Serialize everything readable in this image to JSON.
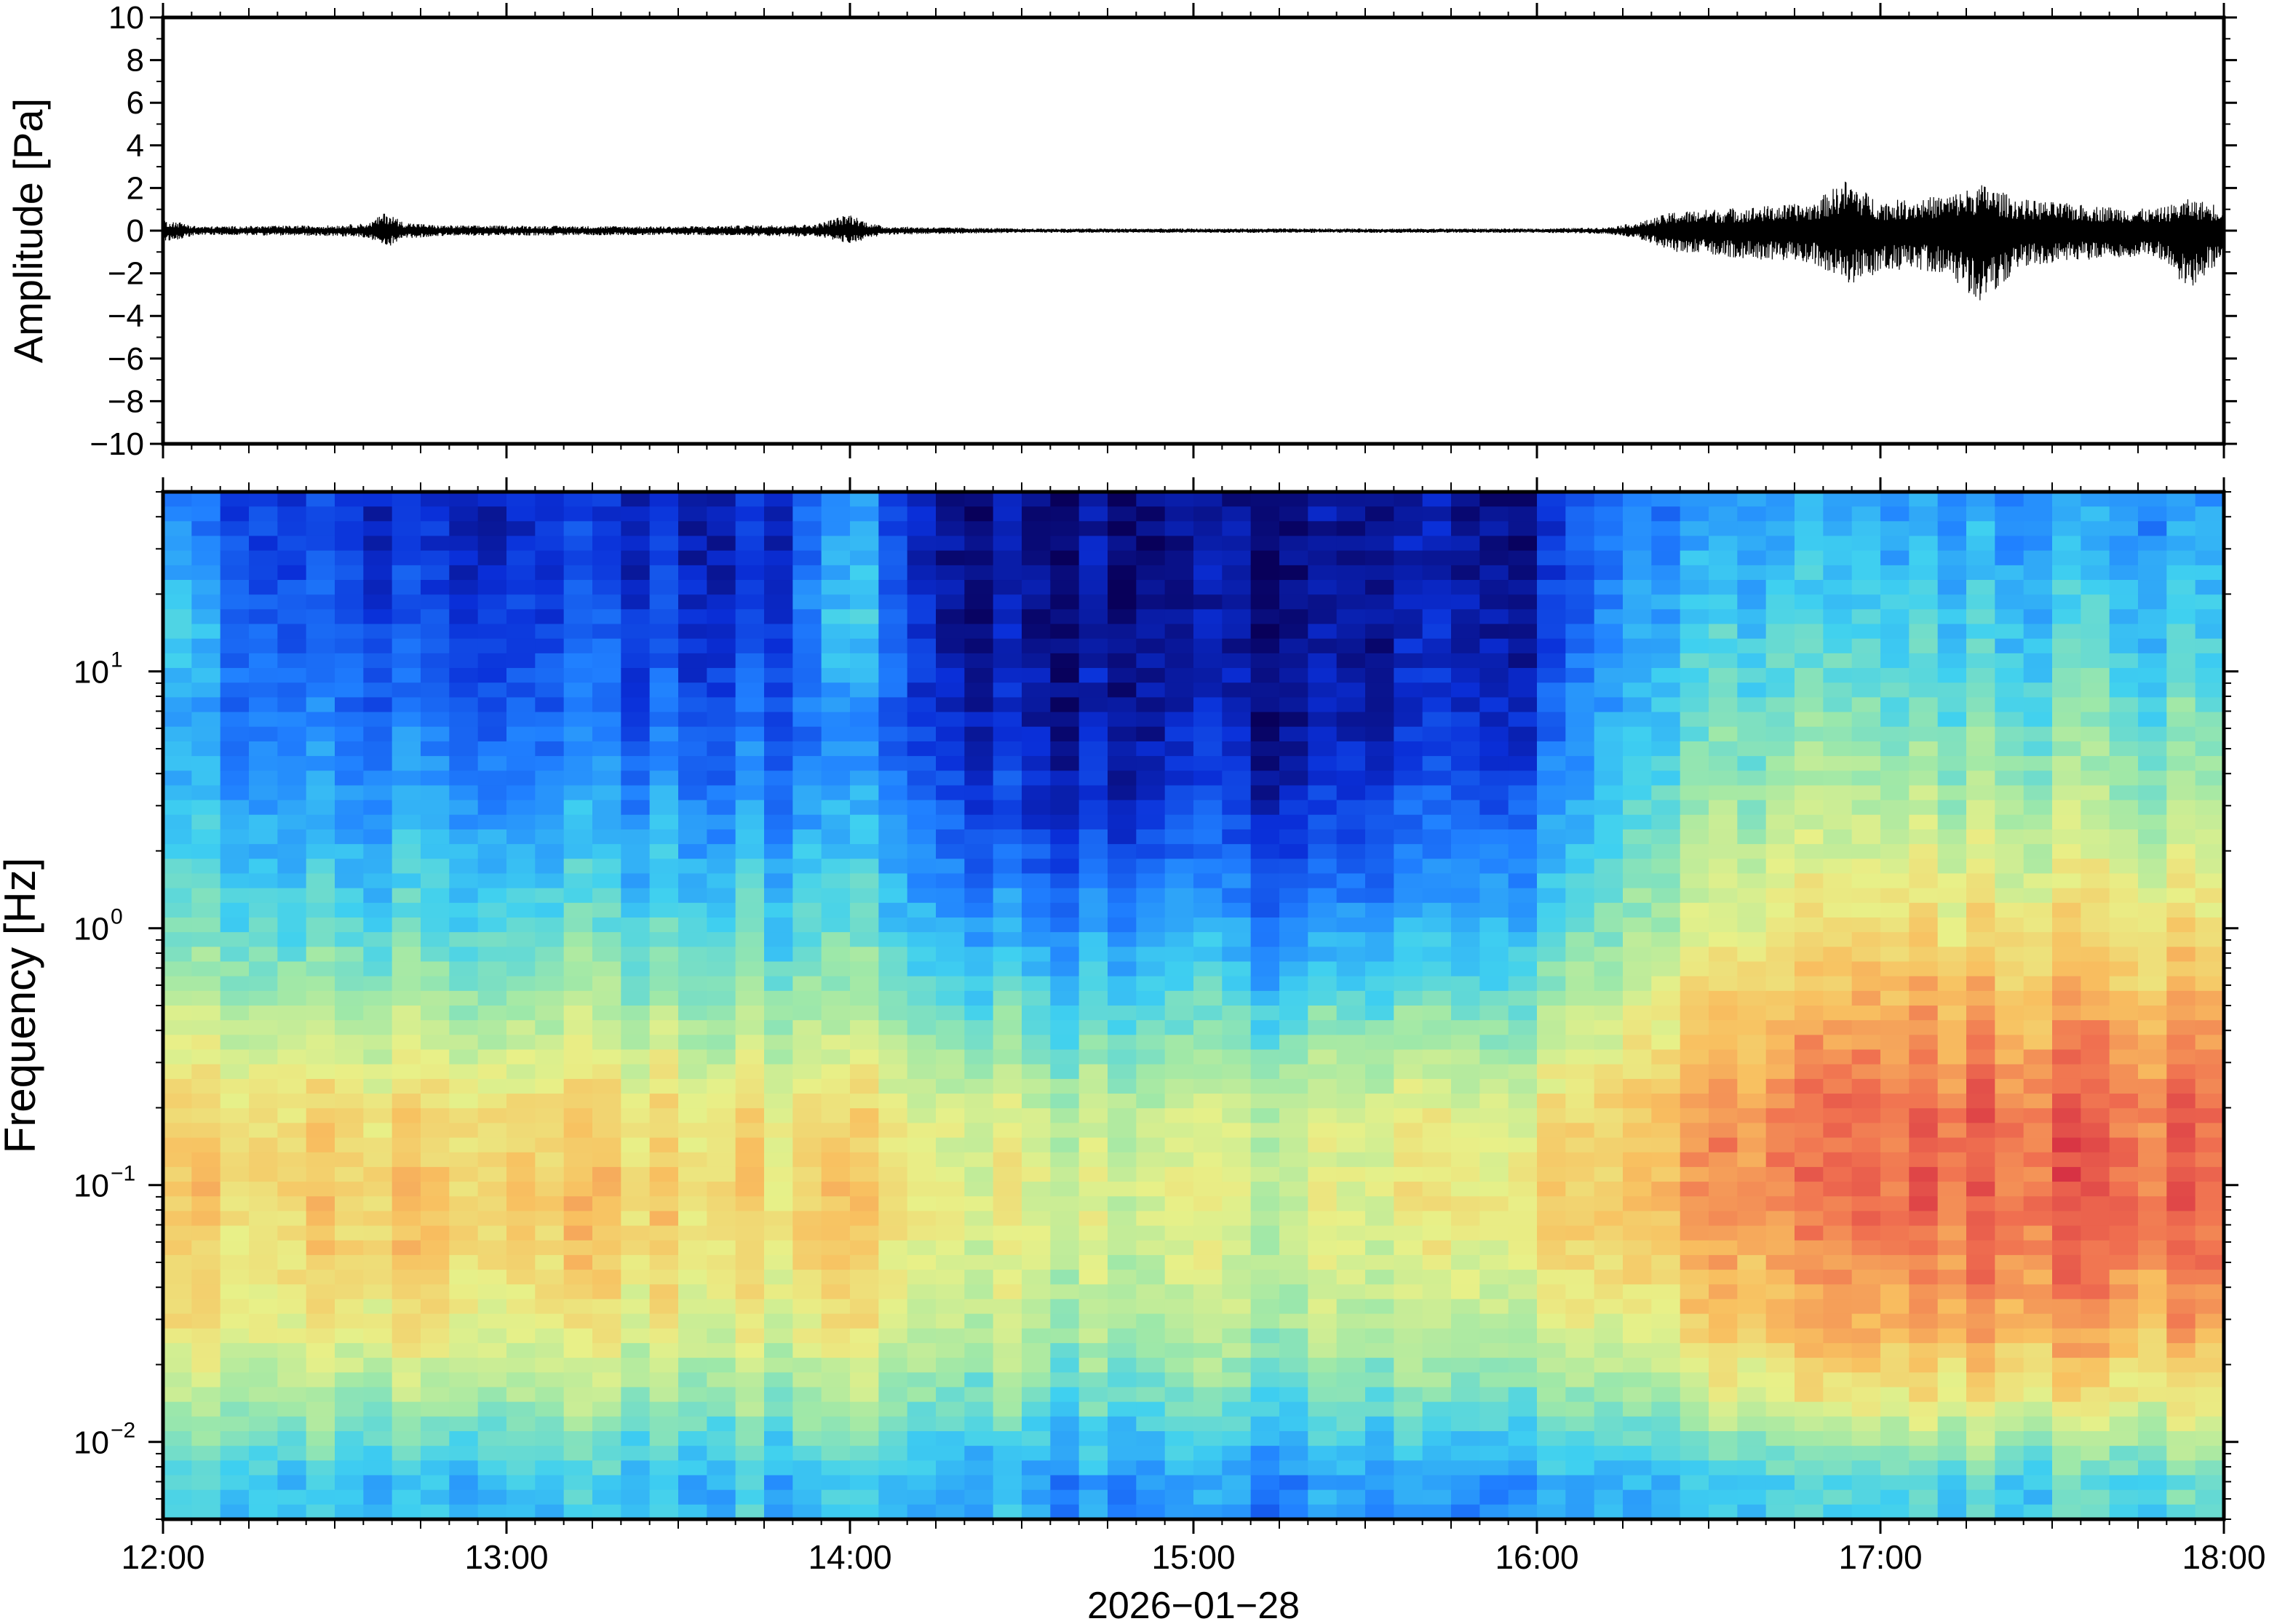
{
  "chart_data": [
    {
      "type": "line",
      "panel": "waveform",
      "ylabel": "Amplitude [Pa]",
      "ylim": [
        -10,
        10
      ],
      "yticks": [
        10,
        8,
        6,
        4,
        2,
        0,
        -2,
        -4,
        -6,
        -8,
        -10
      ],
      "ytick_labels": [
        "10",
        "8",
        "6",
        "4",
        "2",
        "0",
        "−2",
        "−4",
        "−6",
        "−8",
        "−10"
      ],
      "xlim": [
        "12:00",
        "18:00"
      ],
      "envelope": {
        "x_hours": [
          12.0,
          12.05,
          12.1,
          12.5,
          12.6,
          12.65,
          12.7,
          12.8,
          13.5,
          13.9,
          14.0,
          14.05,
          14.1,
          14.5,
          15.0,
          15.5,
          16.0,
          16.2,
          16.3,
          16.4,
          16.6,
          16.8,
          16.9,
          17.0,
          17.1,
          17.2,
          17.3,
          17.4,
          17.6,
          17.8,
          17.9,
          18.0
        ],
        "y_max": [
          0.5,
          0.4,
          0.2,
          0.25,
          0.35,
          0.9,
          0.4,
          0.25,
          0.2,
          0.3,
          0.8,
          0.4,
          0.2,
          0.1,
          0.1,
          0.1,
          0.1,
          0.15,
          0.4,
          0.9,
          1.1,
          1.3,
          2.4,
          1.4,
          1.5,
          1.7,
          2.2,
          1.5,
          1.2,
          1.0,
          1.5,
          1.2
        ],
        "y_min": [
          -0.5,
          -0.4,
          -0.2,
          -0.25,
          -0.35,
          -0.8,
          -0.4,
          -0.25,
          -0.2,
          -0.3,
          -0.6,
          -0.4,
          -0.2,
          -0.1,
          -0.1,
          -0.1,
          -0.1,
          -0.15,
          -0.4,
          -1.0,
          -1.3,
          -1.5,
          -2.6,
          -2.0,
          -1.8,
          -2.1,
          -3.6,
          -1.8,
          -1.4,
          -1.2,
          -2.8,
          -1.3
        ]
      }
    },
    {
      "type": "heatmap",
      "panel": "spectrogram",
      "ylabel": "Frequency [Hz]",
      "yscale": "log",
      "ylim": [
        0.005,
        50
      ],
      "ytick_labels": [
        "10",
        "10",
        "10",
        "10"
      ],
      "ytick_exponents": [
        "1",
        "0",
        "−1",
        "−2"
      ],
      "ytick_values": [
        10,
        1,
        0.1,
        0.01
      ],
      "colormap": [
        "#08005a",
        "#0a2fd8",
        "#2080ff",
        "#3fd0f0",
        "#9fe8a8",
        "#e8f088",
        "#f8c060",
        "#f07050",
        "#d02040"
      ],
      "xlabel": "2026−01−28",
      "xlim": [
        "12:00",
        "18:00"
      ],
      "xtick_labels": [
        "12:00",
        "13:00",
        "14:00",
        "15:00",
        "16:00",
        "17:00",
        "18:00"
      ],
      "xtick_hours": [
        12,
        13,
        14,
        15,
        16,
        17,
        18
      ],
      "relative_power": {
        "description_levels": "0 = low (dark blue), 1 = high (red)",
        "time_hours": [
          12.0,
          12.25,
          12.5,
          12.75,
          13.0,
          13.25,
          13.5,
          13.75,
          14.0,
          14.25,
          14.5,
          14.75,
          15.0,
          15.25,
          15.5,
          15.75,
          16.0,
          16.25,
          16.5,
          16.75,
          17.0,
          17.25,
          17.5,
          17.75,
          18.0
        ],
        "freq_hz": [
          0.007,
          0.015,
          0.03,
          0.06,
          0.1,
          0.2,
          0.4,
          1.0,
          2.5,
          6.0,
          15.0,
          40.0
        ],
        "levels": [
          [
            0.38,
            0.55,
            0.66,
            0.7,
            0.72,
            0.68,
            0.58,
            0.44,
            0.35,
            0.3,
            0.4,
            0.25
          ],
          [
            0.38,
            0.52,
            0.64,
            0.68,
            0.7,
            0.67,
            0.56,
            0.42,
            0.33,
            0.25,
            0.2,
            0.16
          ],
          [
            0.36,
            0.52,
            0.65,
            0.7,
            0.72,
            0.68,
            0.56,
            0.42,
            0.32,
            0.24,
            0.2,
            0.15
          ],
          [
            0.37,
            0.56,
            0.68,
            0.74,
            0.74,
            0.7,
            0.58,
            0.44,
            0.34,
            0.26,
            0.18,
            0.14
          ],
          [
            0.36,
            0.52,
            0.64,
            0.7,
            0.72,
            0.68,
            0.56,
            0.42,
            0.32,
            0.22,
            0.16,
            0.12
          ],
          [
            0.36,
            0.52,
            0.65,
            0.72,
            0.73,
            0.68,
            0.56,
            0.42,
            0.32,
            0.22,
            0.17,
            0.12
          ],
          [
            0.35,
            0.5,
            0.62,
            0.68,
            0.7,
            0.66,
            0.54,
            0.4,
            0.3,
            0.2,
            0.14,
            0.1
          ],
          [
            0.35,
            0.5,
            0.63,
            0.68,
            0.7,
            0.66,
            0.54,
            0.4,
            0.3,
            0.2,
            0.14,
            0.1
          ],
          [
            0.36,
            0.52,
            0.64,
            0.7,
            0.72,
            0.66,
            0.54,
            0.42,
            0.32,
            0.24,
            0.38,
            0.3
          ],
          [
            0.34,
            0.48,
            0.6,
            0.64,
            0.66,
            0.62,
            0.5,
            0.36,
            0.24,
            0.16,
            0.1,
            0.08
          ],
          [
            0.3,
            0.44,
            0.55,
            0.58,
            0.6,
            0.56,
            0.44,
            0.28,
            0.14,
            0.08,
            0.05,
            0.04
          ],
          [
            0.26,
            0.42,
            0.52,
            0.56,
            0.58,
            0.54,
            0.42,
            0.26,
            0.12,
            0.06,
            0.04,
            0.03
          ],
          [
            0.28,
            0.44,
            0.54,
            0.58,
            0.6,
            0.56,
            0.44,
            0.3,
            0.16,
            0.08,
            0.04,
            0.03
          ],
          [
            0.26,
            0.42,
            0.52,
            0.56,
            0.58,
            0.56,
            0.44,
            0.24,
            0.12,
            0.06,
            0.04,
            0.03
          ],
          [
            0.28,
            0.44,
            0.54,
            0.58,
            0.6,
            0.58,
            0.46,
            0.28,
            0.16,
            0.08,
            0.05,
            0.04
          ],
          [
            0.26,
            0.44,
            0.56,
            0.62,
            0.64,
            0.6,
            0.48,
            0.32,
            0.2,
            0.12,
            0.08,
            0.06
          ],
          [
            0.3,
            0.46,
            0.58,
            0.64,
            0.66,
            0.62,
            0.5,
            0.36,
            0.24,
            0.14,
            0.08,
            0.06
          ],
          [
            0.32,
            0.48,
            0.62,
            0.7,
            0.72,
            0.7,
            0.6,
            0.48,
            0.4,
            0.34,
            0.3,
            0.24
          ],
          [
            0.34,
            0.56,
            0.7,
            0.76,
            0.8,
            0.8,
            0.72,
            0.6,
            0.5,
            0.42,
            0.36,
            0.28
          ],
          [
            0.38,
            0.62,
            0.74,
            0.8,
            0.84,
            0.84,
            0.76,
            0.64,
            0.54,
            0.46,
            0.38,
            0.3
          ],
          [
            0.4,
            0.64,
            0.78,
            0.84,
            0.88,
            0.88,
            0.8,
            0.68,
            0.56,
            0.46,
            0.38,
            0.3
          ],
          [
            0.4,
            0.66,
            0.8,
            0.86,
            0.9,
            0.88,
            0.8,
            0.68,
            0.56,
            0.46,
            0.38,
            0.3
          ],
          [
            0.4,
            0.66,
            0.8,
            0.88,
            0.9,
            0.88,
            0.8,
            0.68,
            0.56,
            0.46,
            0.38,
            0.3
          ],
          [
            0.4,
            0.64,
            0.78,
            0.86,
            0.88,
            0.86,
            0.78,
            0.66,
            0.54,
            0.44,
            0.36,
            0.28
          ],
          [
            0.4,
            0.64,
            0.78,
            0.86,
            0.88,
            0.86,
            0.78,
            0.66,
            0.54,
            0.44,
            0.36,
            0.28
          ]
        ]
      }
    }
  ]
}
